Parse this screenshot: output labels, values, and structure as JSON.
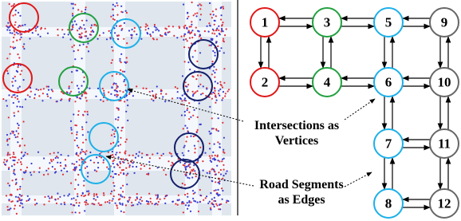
{
  "nodes": [
    {
      "label": "1"
    },
    {
      "label": "3"
    },
    {
      "label": "5"
    },
    {
      "label": "9"
    },
    {
      "label": "2"
    },
    {
      "label": "4"
    },
    {
      "label": "6"
    },
    {
      "label": "10"
    },
    {
      "label": "7"
    },
    {
      "label": "11"
    },
    {
      "label": "8"
    },
    {
      "label": "12"
    }
  ],
  "annotations": [
    {
      "lines": [
        "Intersections as",
        "Vertices"
      ]
    },
    {
      "lines": [
        "Road Segments",
        "as Edges"
      ]
    }
  ]
}
